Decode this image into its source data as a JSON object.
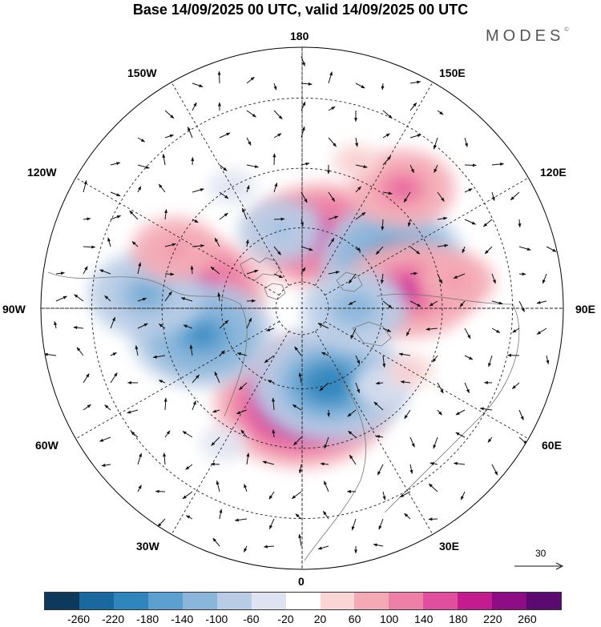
{
  "title": "Base 14/09/2025 00 UTC, valid 14/09/2025 00 UTC",
  "brand": "MODES",
  "brand_mark": "©",
  "longitude_labels": {
    "lon_180": "180",
    "lon_150e": "150E",
    "lon_120e": "120E",
    "lon_90e": "90E",
    "lon_60e": "60E",
    "lon_30e": "30E",
    "lon_0": "0",
    "lon_30w": "30W",
    "lon_60w": "60W",
    "lon_90w": "90W",
    "lon_120w": "120W",
    "lon_150w": "150W"
  },
  "reference_vector": "30",
  "colorbar": {
    "colors": [
      "#0d3a5c",
      "#19689e",
      "#2f86bd",
      "#5ba0cf",
      "#8bb6dc",
      "#b9cce6",
      "#dfe3f1",
      "#ffffff",
      "#f9d5d5",
      "#f4aab5",
      "#ee7fa6",
      "#e04e9e",
      "#c21c8f",
      "#8f0d84",
      "#5b0a70"
    ],
    "tick_labels": [
      "-260",
      "-220",
      "-180",
      "-140",
      "-100",
      "-60",
      "-20",
      "20",
      "60",
      "100",
      "140",
      "180",
      "220",
      "260"
    ]
  },
  "anomaly_features": [
    {
      "sign": "positive",
      "value": 250,
      "lon": 0,
      "lat": 55
    },
    {
      "sign": "negative",
      "value": -220,
      "lon": 20,
      "lat": 60
    },
    {
      "sign": "positive",
      "value": 200,
      "lon": 165,
      "lat": 62
    },
    {
      "sign": "negative",
      "value": -200,
      "lon": 120,
      "lat": 52
    },
    {
      "sign": "positive",
      "value": 180,
      "lon": 100,
      "lat": 50
    },
    {
      "sign": "positive",
      "value": 200,
      "lon": -100,
      "lat": 50
    },
    {
      "sign": "negative",
      "value": -200,
      "lon": -75,
      "lat": 52
    },
    {
      "sign": "negative",
      "value": -160,
      "lon": -95,
      "lat": 35
    },
    {
      "sign": "negative",
      "value": -120,
      "lon": -165,
      "lat": 60
    },
    {
      "sign": "negative",
      "value": -140,
      "lon": 90,
      "lat": 70
    },
    {
      "sign": "positive",
      "value": 140,
      "lon": 140,
      "lat": 35
    },
    {
      "sign": "positive",
      "value": 120,
      "lon": -115,
      "lat": 40
    },
    {
      "sign": "positive",
      "value": 100,
      "lon": 100,
      "lat": 35
    },
    {
      "sign": "negative",
      "value": -80,
      "lon": 45,
      "lat": 50
    },
    {
      "sign": "positive",
      "value": 60,
      "lon": 60,
      "lat": 45
    },
    {
      "sign": "negative",
      "value": -60,
      "lon": -150,
      "lat": 40
    },
    {
      "sign": "positive",
      "value": 60,
      "lon": 160,
      "lat": 35
    },
    {
      "sign": "negative",
      "value": -60,
      "lon": -30,
      "lat": 35
    }
  ]
}
